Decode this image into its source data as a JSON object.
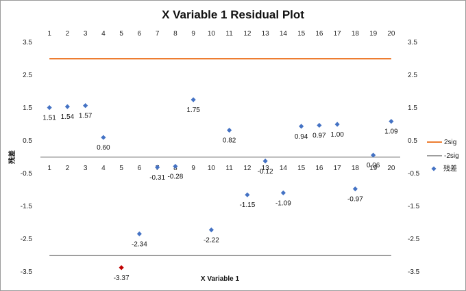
{
  "chart_data": {
    "type": "scatter",
    "title": "X Variable 1 Residual Plot",
    "xlabel": "X Variable  1",
    "ylabel": "残差",
    "x": [
      1,
      2,
      3,
      4,
      5,
      6,
      7,
      8,
      9,
      10,
      11,
      12,
      13,
      14,
      15,
      16,
      17,
      18,
      19,
      20
    ],
    "ylim": [
      -3.5,
      3.5
    ],
    "yticks": [
      "3.5",
      "2.5",
      "1.5",
      "0.5",
      "-0.5",
      "-1.5",
      "-2.5",
      "-3.5"
    ],
    "ytick_values": [
      3.5,
      2.5,
      1.5,
      0.5,
      -0.5,
      -1.5,
      -2.5,
      -3.5
    ],
    "series": [
      {
        "name": "残差",
        "color": "#4472C4",
        "values": [
          1.51,
          1.54,
          1.57,
          0.6,
          -3.37,
          -2.34,
          -0.31,
          -0.28,
          1.75,
          -2.22,
          0.82,
          -1.15,
          -0.12,
          -1.09,
          0.94,
          0.97,
          1.0,
          -0.97,
          0.06,
          1.09
        ],
        "labels": [
          "1.51",
          "1.54",
          "1.57",
          "0.60",
          "-3.37",
          "-2.34",
          "-0.31",
          "-0.28",
          "1.75",
          "-2.22",
          "0.82",
          "-1.15",
          "-0.12",
          "-1.09",
          "0.94",
          "0.97",
          "1.00",
          "-0.97",
          "0.06",
          "1.09"
        ],
        "highlight_index": 4,
        "highlight_color": "#C00000"
      },
      {
        "name": "2sig",
        "color": "#ED7D31",
        "value": 3.0
      },
      {
        "name": "-2sig",
        "color": "#7F7F7F",
        "value": -3.0
      }
    ],
    "legend": [
      "2sig",
      "-2sig",
      "残差"
    ],
    "legend_position": "right"
  }
}
